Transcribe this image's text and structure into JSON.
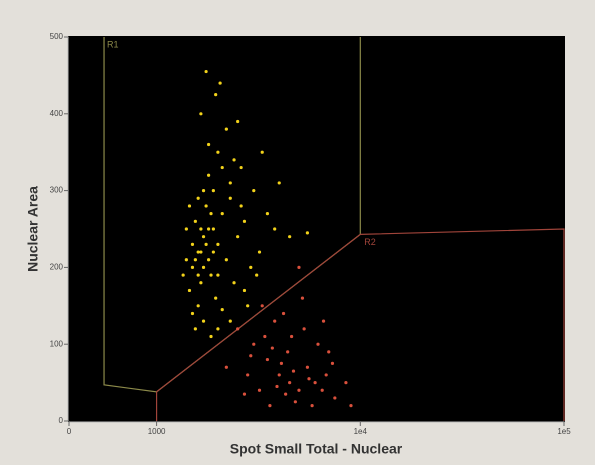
{
  "chart_data": {
    "type": "scatter",
    "x_label": "Spot Small Total - Nuclear",
    "y_label": "Nuclear Area",
    "xscale": "symlog",
    "linthresh": 1000,
    "linscale": 0.43,
    "xlim": [
      0,
      100000
    ],
    "ylim": [
      0,
      500
    ],
    "xticks": [
      0,
      1000,
      {
        "value": 10000,
        "label": "1e4"
      },
      {
        "value": 100000,
        "label": "1e5"
      }
    ],
    "yticks": [
      0,
      100,
      200,
      300,
      400,
      500
    ],
    "series": [
      {
        "color": "#f2d21a",
        "x": [
          1500,
          1600,
          1700,
          1800,
          1650,
          1550,
          1900,
          2000,
          1750,
          1450,
          1600,
          1850,
          2100,
          1700,
          1500,
          1950,
          2200,
          1800,
          1400,
          1650,
          2300,
          2500,
          2400,
          2700,
          3000,
          2600,
          2000,
          1800,
          2200,
          2500,
          3200,
          3500,
          2900,
          3800,
          4500,
          5500,
          4000,
          3300,
          2800,
          2300,
          2000,
          1700,
          1500,
          1400,
          1350,
          1600,
          1900,
          2100,
          2400,
          1650,
          1750,
          2050,
          1950,
          2300,
          2600,
          3100,
          2700,
          2100,
          1850,
          1550,
          1450,
          1600,
          1700,
          1750,
          1800,
          1550,
          1650,
          1900,
          2000,
          1850
        ],
        "y": [
          200,
          220,
          240,
          210,
          180,
          260,
          250,
          230,
          280,
          170,
          150,
          190,
          270,
          300,
          230,
          160,
          210,
          320,
          210,
          250,
          290,
          240,
          180,
          260,
          300,
          330,
          350,
          360,
          380,
          390,
          220,
          270,
          200,
          250,
          240,
          245,
          310,
          350,
          150,
          130,
          120,
          130,
          140,
          250,
          190,
          290,
          300,
          330,
          340,
          400,
          455,
          440,
          425,
          310,
          280,
          190,
          170,
          145,
          110,
          120,
          280,
          190,
          200,
          230,
          250,
          210,
          220,
          220,
          190,
          270
        ]
      },
      {
        "color": "#d9503c",
        "x": [
          3000,
          3500,
          4000,
          4500,
          5000,
          3800,
          4200,
          4600,
          5500,
          6000,
          6500,
          7000,
          3200,
          2800,
          2500,
          4800,
          5200,
          3600,
          7500,
          8500,
          6200,
          5800,
          4400,
          3900,
          2700,
          3300,
          5300,
          6800,
          4100,
          4700,
          5600,
          3400,
          2200,
          9000,
          7300,
          5000,
          4300,
          3700,
          6600,
          2900
        ],
        "y": [
          100,
          80,
          60,
          50,
          40,
          130,
          140,
          110,
          70,
          50,
          40,
          90,
          40,
          60,
          120,
          25,
          160,
          20,
          30,
          50,
          100,
          20,
          90,
          45,
          35,
          150,
          120,
          60,
          75,
          65,
          55,
          110,
          70,
          20,
          75,
          200,
          35,
          95,
          130,
          85
        ]
      }
    ],
    "regions": [
      {
        "name": "R1",
        "color": "#8c8a4a",
        "x": [
          400,
          400,
          1000,
          10000,
          10000
        ],
        "y": [
          500,
          47,
          38,
          243,
          500
        ]
      },
      {
        "name": "R2",
        "color": "#a0443a",
        "x": [
          1000,
          1000,
          10000,
          100000,
          100000
        ],
        "y": [
          0,
          38,
          243,
          250,
          0
        ]
      }
    ]
  }
}
